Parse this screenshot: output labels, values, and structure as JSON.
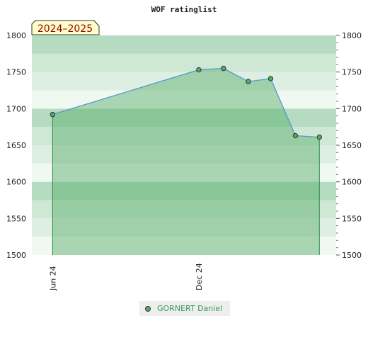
{
  "chart_data": {
    "type": "area",
    "title": "WOF ratinglist",
    "season_badge": "2024–2025",
    "xlabel": "",
    "ylabel": "",
    "x_ticks": [
      "Jun 24",
      "Dec 24"
    ],
    "ylim": [
      1500,
      1800
    ],
    "y_ticks": [
      1500,
      1550,
      1600,
      1650,
      1700,
      1750,
      1800
    ],
    "grid": true,
    "legend_position": "bottom-center",
    "series": [
      {
        "name": "GORNERT Daniel",
        "color": "#55aa66",
        "points": [
          {
            "x": "2024-06-01",
            "y": 1692
          },
          {
            "x": "2024-12-01",
            "y": 1753
          },
          {
            "x": "2025-01-01",
            "y": 1755
          },
          {
            "x": "2025-02-01",
            "y": 1737
          },
          {
            "x": "2025-03-01",
            "y": 1741
          },
          {
            "x": "2025-04-01",
            "y": 1663
          },
          {
            "x": "2025-05-01",
            "y": 1661
          }
        ]
      }
    ]
  }
}
